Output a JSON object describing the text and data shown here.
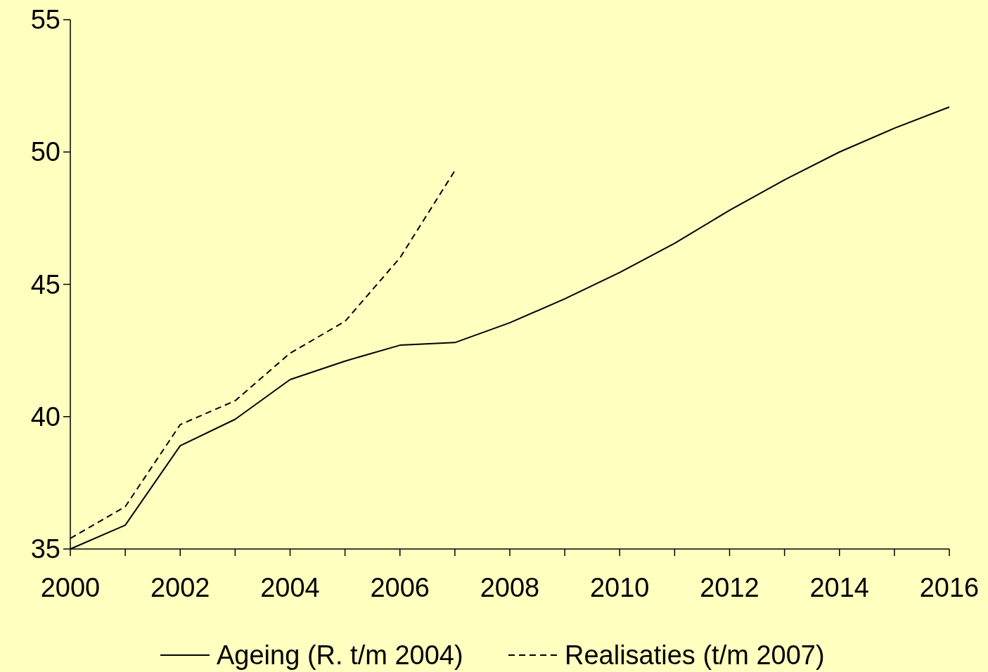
{
  "chart_data": {
    "type": "line",
    "x": [
      2000,
      2001,
      2002,
      2003,
      2004,
      2005,
      2006,
      2007,
      2008,
      2009,
      2010,
      2011,
      2012,
      2013,
      2014,
      2015,
      2016
    ],
    "series": [
      {
        "name": "Ageing (R. t/m 2004)",
        "color": "#000000",
        "line_style": "solid",
        "values": [
          35.0,
          35.9,
          38.9,
          39.9,
          41.4,
          42.1,
          42.7,
          42.8,
          43.55,
          44.45,
          45.45,
          46.55,
          47.8,
          48.95,
          50.0,
          50.9,
          51.7
        ]
      },
      {
        "name": "Realisaties (t/m 2007)",
        "color": "#000000",
        "line_style": "dashed",
        "x": [
          2000,
          2001,
          2002,
          2003,
          2004,
          2005,
          2006,
          2007
        ],
        "values": [
          35.4,
          36.6,
          39.7,
          40.6,
          42.4,
          43.6,
          46.0,
          49.3
        ]
      }
    ],
    "xlim": [
      2000,
      2016
    ],
    "xticks": [
      2000,
      {
        "value": 2001,
        "label": null
      },
      2002,
      {
        "value": 2003,
        "label": null
      },
      2004,
      {
        "value": 2005,
        "label": null
      },
      2006,
      {
        "value": 2007,
        "label": null
      },
      2008,
      {
        "value": 2009,
        "label": null
      },
      2010,
      {
        "value": 2011,
        "label": null
      },
      2012,
      {
        "value": 2013,
        "label": null
      },
      2014,
      {
        "value": 2015,
        "label": null
      },
      2016
    ],
    "ylim": [
      35,
      55
    ],
    "yticks": [
      35,
      40,
      45,
      50,
      55
    ],
    "grid": false,
    "legend": "bottom",
    "marker": "none"
  }
}
